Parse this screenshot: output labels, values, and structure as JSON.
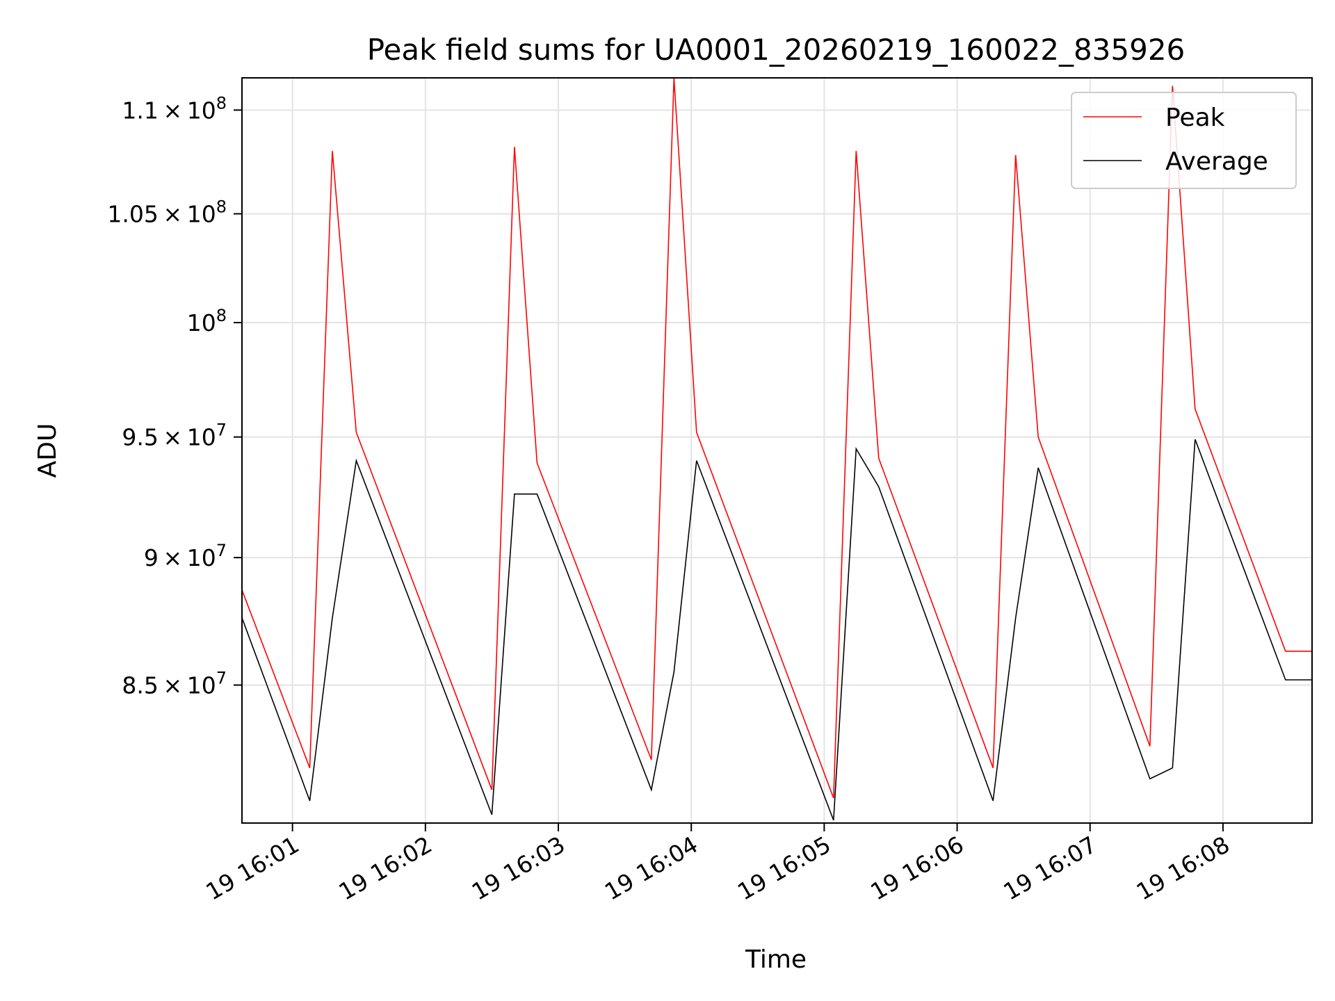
{
  "chart_data": {
    "type": "line",
    "title": "Peak field sums for UA0001_20260219_160022_835926",
    "xlabel": "Time",
    "ylabel": "ADU",
    "ylim": [
      79900000,
      111600000
    ],
    "y_scale": "log",
    "grid": true,
    "legend_position": "top-right",
    "x_unit": "minutes after 16:00",
    "xlim": [
      0.62,
      8.67
    ],
    "x_ticks": [
      {
        "value": 1,
        "label": "19 16:01"
      },
      {
        "value": 2,
        "label": "19 16:02"
      },
      {
        "value": 3,
        "label": "19 16:03"
      },
      {
        "value": 4,
        "label": "19 16:04"
      },
      {
        "value": 5,
        "label": "19 16:05"
      },
      {
        "value": 6,
        "label": "19 16:06"
      },
      {
        "value": 7,
        "label": "19 16:07"
      },
      {
        "value": 8,
        "label": "19 16:08"
      }
    ],
    "y_ticks": [
      {
        "value": 85000000,
        "base": "8.5",
        "exp": "7"
      },
      {
        "value": 90000000,
        "base": "9",
        "exp": "7"
      },
      {
        "value": 95000000,
        "base": "9.5",
        "exp": "7"
      },
      {
        "value": 100000000,
        "base": "",
        "exp": "8"
      },
      {
        "value": 105000000,
        "base": "1.05",
        "exp": "8"
      },
      {
        "value": 110000000,
        "base": "1.1",
        "exp": "8"
      }
    ],
    "series": [
      {
        "name": "Peak",
        "color": "#ff0000",
        "x": [
          0.62,
          1.13,
          1.3,
          1.48,
          2.5,
          2.67,
          2.84,
          3.7,
          3.87,
          4.04,
          5.07,
          5.24,
          5.41,
          6.27,
          6.44,
          6.61,
          7.45,
          7.62,
          7.79,
          8.47,
          8.67
        ],
        "y": [
          88700000,
          81900000,
          108000000,
          95200000,
          81100000,
          108200000,
          93900000,
          82200000,
          111600000,
          95200000,
          80800000,
          108000000,
          94100000,
          81900000,
          107800000,
          95000000,
          82700000,
          111200000,
          96200000,
          86300000,
          86300000
        ]
      },
      {
        "name": "Average",
        "color": "#000000",
        "x": [
          0.62,
          1.13,
          1.3,
          1.48,
          2.5,
          2.67,
          2.84,
          3.7,
          3.87,
          4.04,
          5.07,
          5.24,
          5.41,
          6.27,
          6.44,
          6.61,
          7.45,
          7.62,
          7.79,
          8.47,
          8.67
        ],
        "y": [
          87600000,
          80700000,
          87600000,
          94000000,
          80200000,
          92600000,
          92600000,
          81100000,
          85500000,
          94000000,
          80000000,
          94500000,
          92900000,
          80700000,
          87600000,
          93700000,
          81500000,
          81900000,
          94900000,
          85200000,
          85200000
        ]
      }
    ]
  }
}
